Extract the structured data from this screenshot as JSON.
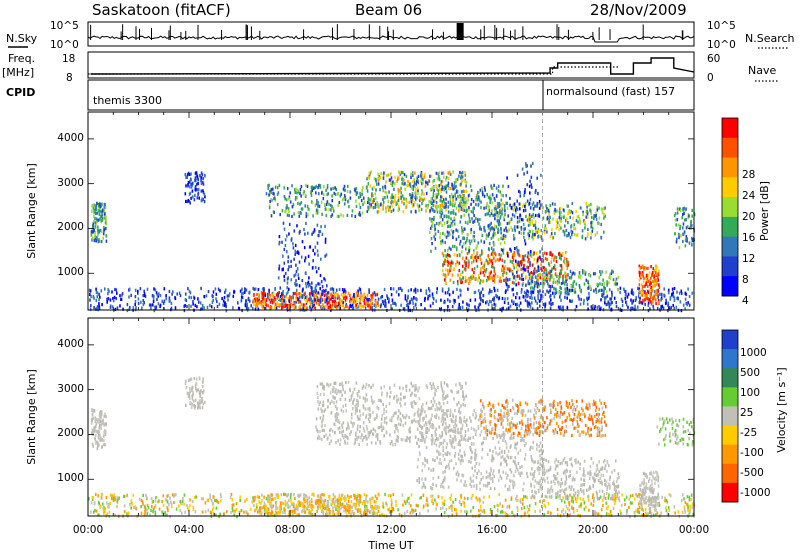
{
  "header": {
    "station": "Saskatoon (fitACF)",
    "beam": "Beam 06",
    "date": "28/Nov/2009"
  },
  "status_panels": {
    "nsky_label": "N.Sky",
    "nsky_ticks": [
      "10^5",
      "10^0"
    ],
    "nsearch_label": "N.Search",
    "nsearch_ticks": [
      "10^5",
      "10^0"
    ],
    "freq_label": "Freq.",
    "freq_unit": "[MHz]",
    "freq_ticks": [
      "18",
      "8"
    ],
    "nave_label": "Nave",
    "nave_ticks": [
      "60",
      "0"
    ],
    "cpid_label": "CPID",
    "cpid_segments": [
      {
        "label": "themis 3300",
        "start_hour": 0,
        "end_hour": 18.0
      },
      {
        "label": "normalsound (fast) 157",
        "start_hour": 18.0,
        "end_hour": 24.0
      }
    ]
  },
  "plot": {
    "ylabel": "Slant Range [km]",
    "xlabel": "Time UT",
    "y_ticks": [
      "1000",
      "2000",
      "3000",
      "4000"
    ],
    "x_ticks": [
      "00:00",
      "04:00",
      "08:00",
      "12:00",
      "16:00",
      "20:00",
      "00:00"
    ]
  },
  "chart_data": [
    {
      "type": "heatmap",
      "name": "Power",
      "x_range_hours": [
        0,
        24
      ],
      "ylim": [
        180,
        4600
      ],
      "ylabel": "Slant Range [km]",
      "xlabel": "Time UT",
      "colorbar": {
        "label": "Power [dB]",
        "ticks": [
          "28",
          "24",
          "20",
          "16",
          "12",
          "8",
          "4"
        ],
        "colors": [
          "#ff0000",
          "#ff5000",
          "#ff9600",
          "#ffcc00",
          "#99dd33",
          "#33aa55",
          "#3377bb",
          "#1f3fcc",
          "#0000ff"
        ]
      }
    },
    {
      "type": "heatmap",
      "name": "Velocity",
      "x_range_hours": [
        0,
        24
      ],
      "ylim": [
        180,
        4600
      ],
      "ylabel": "Slant Range [km]",
      "xlabel": "Time UT",
      "colorbar": {
        "label": "Velocity [m s⁻¹]",
        "ticks": [
          "1000",
          "500",
          "100",
          "25",
          "-25",
          "-100",
          "-500",
          "-1000"
        ],
        "colors": [
          "#1f3fcc",
          "#2f77cc",
          "#338855",
          "#66cc33",
          "#c0c0b8",
          "#ffcc00",
          "#ff9900",
          "#ff6600",
          "#ff0000"
        ]
      }
    }
  ]
}
